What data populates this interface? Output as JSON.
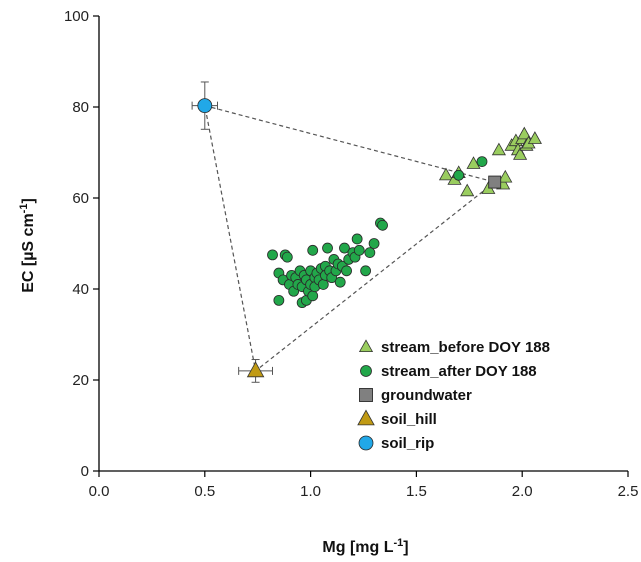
{
  "chart_data": {
    "type": "scatter",
    "x_axis": {
      "label": "Mg [mg L",
      "label_superscript": "-1",
      "label_suffix": "]",
      "range": [
        0,
        2.5
      ],
      "ticks": [
        0,
        0.5,
        1.0,
        1.5,
        2.0,
        2.5
      ],
      "tick_labels": [
        "0.0",
        "0.5",
        "1.0",
        "1.5",
        "2.0",
        "2.5"
      ]
    },
    "y_axis": {
      "label": "EC [µS cm",
      "label_superscript": "-1",
      "label_suffix": "]",
      "range": [
        0,
        100
      ],
      "ticks": [
        0,
        20,
        40,
        60,
        80,
        100
      ],
      "tick_labels": [
        "0",
        "20",
        "40",
        "60",
        "80",
        "100"
      ]
    },
    "grid": false,
    "legend_position": "bottom-right",
    "colors": {
      "stream_before": "#9acd5f",
      "stream_after": "#22a74a",
      "groundwater": "#808080",
      "soil_hill": "#c09a14",
      "soil_rip": "#21a8e8",
      "mixing_line": "#555555"
    },
    "series": [
      {
        "name": "stream_before DOY 188",
        "marker": "triangle",
        "points": [
          [
            1.64,
            65
          ],
          [
            1.68,
            64
          ],
          [
            1.7,
            65.5
          ],
          [
            1.74,
            61.5
          ],
          [
            1.77,
            67.5
          ],
          [
            1.84,
            62
          ],
          [
            1.89,
            70.5
          ],
          [
            1.91,
            63
          ],
          [
            1.92,
            64.5
          ],
          [
            1.95,
            71.5
          ],
          [
            1.97,
            72.5
          ],
          [
            1.98,
            70.5
          ],
          [
            1.99,
            69.5
          ],
          [
            2.0,
            73
          ],
          [
            2.01,
            74
          ],
          [
            2.02,
            71.5
          ],
          [
            2.03,
            72
          ],
          [
            2.06,
            73
          ]
        ]
      },
      {
        "name": "stream_after DOY 188",
        "marker": "circle",
        "points": [
          [
            0.82,
            47.5
          ],
          [
            0.85,
            43.5
          ],
          [
            0.85,
            37.5
          ],
          [
            0.87,
            42
          ],
          [
            0.88,
            47.5
          ],
          [
            0.89,
            47
          ],
          [
            0.9,
            41
          ],
          [
            0.91,
            43
          ],
          [
            0.92,
            39.5
          ],
          [
            0.93,
            42.5
          ],
          [
            0.94,
            41
          ],
          [
            0.95,
            44
          ],
          [
            0.96,
            40.5
          ],
          [
            0.96,
            37
          ],
          [
            0.97,
            43
          ],
          [
            0.98,
            37.5
          ],
          [
            0.98,
            42
          ],
          [
            0.99,
            39.5
          ],
          [
            1.0,
            41
          ],
          [
            1.0,
            44
          ],
          [
            1.01,
            38.5
          ],
          [
            1.01,
            48.5
          ],
          [
            1.02,
            42.5
          ],
          [
            1.02,
            40.5
          ],
          [
            1.03,
            43.5
          ],
          [
            1.04,
            42
          ],
          [
            1.05,
            44.5
          ],
          [
            1.06,
            41
          ],
          [
            1.07,
            45
          ],
          [
            1.07,
            43
          ],
          [
            1.08,
            49
          ],
          [
            1.09,
            44
          ],
          [
            1.1,
            42.5
          ],
          [
            1.11,
            46.5
          ],
          [
            1.12,
            44
          ],
          [
            1.13,
            45.5
          ],
          [
            1.14,
            41.5
          ],
          [
            1.15,
            45
          ],
          [
            1.16,
            49
          ],
          [
            1.17,
            44
          ],
          [
            1.18,
            46.5
          ],
          [
            1.2,
            48
          ],
          [
            1.21,
            47
          ],
          [
            1.22,
            51
          ],
          [
            1.23,
            48.5
          ],
          [
            1.26,
            44
          ],
          [
            1.28,
            48
          ],
          [
            1.3,
            50
          ],
          [
            1.33,
            54.5
          ],
          [
            1.34,
            54
          ],
          [
            1.7,
            65
          ],
          [
            1.81,
            68
          ]
        ]
      },
      {
        "name": "groundwater",
        "marker": "square",
        "points": [
          [
            1.87,
            63.5
          ]
        ]
      },
      {
        "name": "soil_hill",
        "marker": "triangle",
        "points": [
          [
            0.74,
            22
          ]
        ],
        "x_error": 0.08,
        "y_error": 2.5
      },
      {
        "name": "soil_rip",
        "marker": "circle",
        "points": [
          [
            0.5,
            80.3
          ]
        ],
        "x_error": 0.06,
        "y_error": 5.2
      }
    ],
    "mixing_triangle": [
      [
        0.5,
        80.3
      ],
      [
        1.87,
        63.5
      ],
      [
        0.74,
        22
      ]
    ]
  }
}
